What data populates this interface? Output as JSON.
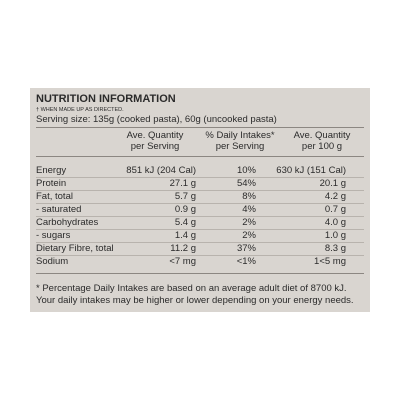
{
  "header": {
    "title": "NUTRITION INFORMATION",
    "note": "† WHEN MADE UP AS DIRECTED.",
    "serving_size": "Serving size: 135g (cooked pasta), 60g (uncooked pasta)"
  },
  "table": {
    "columns": [
      [
        "Ave. Quantity",
        "per Serving"
      ],
      [
        "% Daily Intakes*",
        "per Serving"
      ],
      [
        "Ave. Quantity",
        "per 100 g"
      ]
    ],
    "rows": [
      [
        "Energy",
        "851 kJ (204 Cal)",
        "10%",
        "630 kJ (151 Cal)"
      ],
      [
        "Protein",
        "27.1 g",
        "54%",
        "20.1 g"
      ],
      [
        "Fat, total",
        "5.7 g",
        "8%",
        "4.2 g"
      ],
      [
        "- saturated",
        "0.9 g",
        "4%",
        "0.7 g"
      ],
      [
        "Carbohydrates",
        "5.4 g",
        "2%",
        "4.0 g"
      ],
      [
        "- sugars",
        "1.4 g",
        "2%",
        "1.0 g"
      ],
      [
        "Dietary Fibre, total",
        "11.2 g",
        "37%",
        "8.3 g"
      ],
      [
        "Sodium",
        "<7 mg",
        "<1%",
        "1<5 mg"
      ]
    ]
  },
  "footer": [
    "* Percentage Daily Intakes are based on an average adult diet of 8700 kJ.",
    "Your daily intakes may be higher or lower depending on your energy needs."
  ]
}
